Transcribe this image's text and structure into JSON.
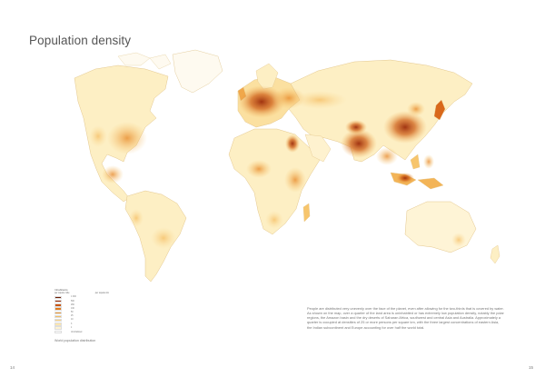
{
  "title": "Population density",
  "legend": {
    "heading": "Inhabitants",
    "subheads": [
      "per square mile",
      "per square km"
    ],
    "classes": [
      {
        "color": "#6e1d04",
        "label": "1 300"
      },
      {
        "color": "#a4310a",
        "label": "500"
      },
      {
        "color": "#c95412",
        "label": "260"
      },
      {
        "color": "#e07b1f",
        "label": "130"
      },
      {
        "color": "#ef9d3a",
        "label": "50"
      },
      {
        "color": "#f6bf62",
        "label": "25"
      },
      {
        "color": "#fad58a",
        "label": "10"
      },
      {
        "color": "#fce6ae",
        "label": "3"
      },
      {
        "color": "#fef3d3",
        "label": "1"
      }
    ],
    "uninhabited_label": "Uninhabited"
  },
  "caption": "World population distribution",
  "body_text": "People are distributed very unevenly over the face of the planet, even after allowing for the two-thirds that is covered by water. As shown on the map, over a quarter of the land area is uninhabited or has extremely low population density, notably the polar regions, the Amazon basin and the dry deserts of Saharan Africa, southwest and central Asia and Australia. Approximately a quarter is occupied at densities of 25 or more persons per square km, with the three largest concentrations of eastern Asia, the Indian subcontinent and Europe accounting for over half the world total.",
  "page_numbers": {
    "left": "14",
    "right": "15"
  },
  "colors": {
    "land_base": "#fdf1c9",
    "coast": "#e7c98e",
    "dense": "#a4310a"
  }
}
